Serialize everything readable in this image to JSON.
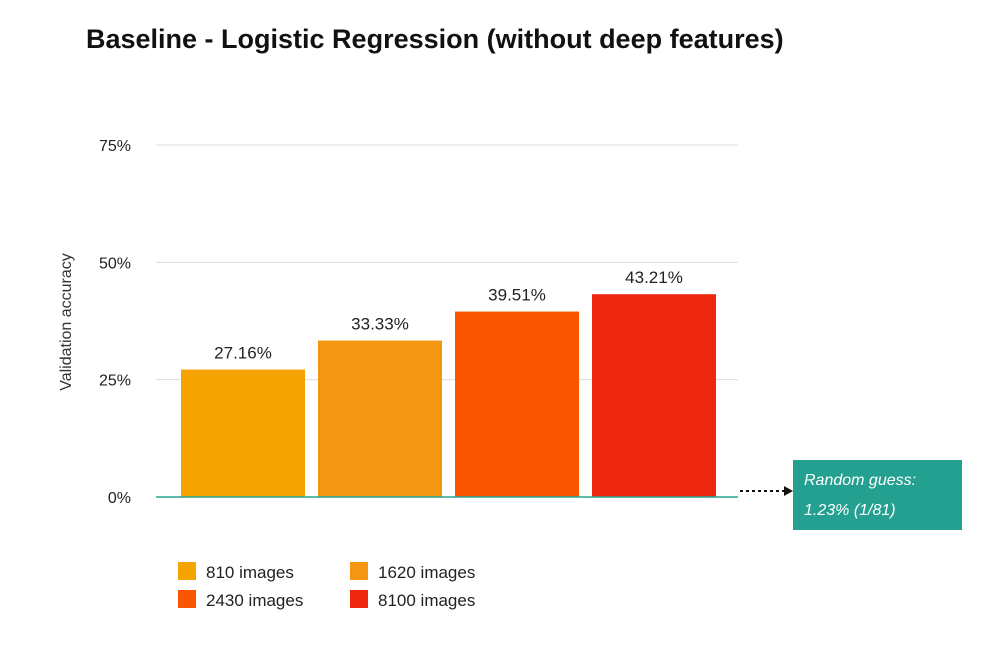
{
  "chart_data": {
    "type": "bar",
    "title": "Baseline - Logistic Regression (without deep features)",
    "xlabel": "",
    "ylabel": "Validation accuracy",
    "ylim": [
      0,
      75
    ],
    "yticks": [
      0,
      25,
      50,
      75
    ],
    "ytick_labels": [
      "0%",
      "25%",
      "50%",
      "75%"
    ],
    "grid": true,
    "legend_position": "bottom-left",
    "series": [
      {
        "name": "810 images",
        "value": 27.16,
        "label": "27.16%",
        "color": "#f5a300"
      },
      {
        "name": "1620 images",
        "value": 33.33,
        "label": "33.33%",
        "color": "#f59612"
      },
      {
        "name": "2430 images",
        "value": 39.51,
        "label": "39.51%",
        "color": "#fb5500"
      },
      {
        "name": "8100 images",
        "value": 43.21,
        "label": "43.21%",
        "color": "#ee2711"
      }
    ],
    "annotation": {
      "lines": [
        "Random guess:",
        "1.23% (1/81)"
      ],
      "color": "#24a090"
    },
    "colors": {
      "axis": "#25a694",
      "grid": "#dddddd"
    }
  }
}
